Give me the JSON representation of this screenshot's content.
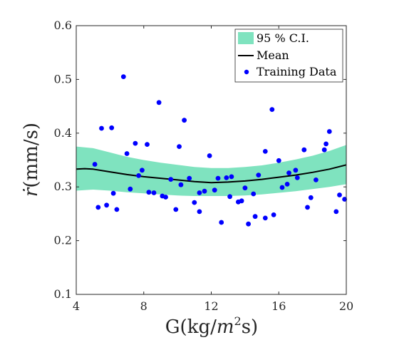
{
  "chart_data": {
    "type": "scatter",
    "xlabel_pre": "G(kg/",
    "xlabel_var": "m",
    "xlabel_sup": "2",
    "xlabel_post": "s)",
    "ylabel_var": "ṙ",
    "ylabel_unit": "(mm/s)",
    "xlim": [
      4,
      20
    ],
    "ylim": [
      0.1,
      0.6
    ],
    "xticks": [
      4,
      8,
      12,
      16,
      20
    ],
    "yticks": [
      0.1,
      0.2,
      0.3,
      0.4,
      0.5,
      0.6
    ],
    "ytick_labels": [
      "0.1",
      "0.2",
      "0.3",
      "0.4",
      "0.5",
      "0.6"
    ],
    "grid": false,
    "legend_position": "top-right",
    "legend": {
      "ci": "95 % C.I.",
      "mean": "Mean",
      "training": "Training Data"
    },
    "colors": {
      "ci_fill": "#7fe3bf",
      "mean_line": "#000000",
      "points": "#0000ff",
      "axis": "#262626"
    },
    "mean": {
      "x": [
        4,
        4.5,
        5,
        6,
        7,
        8,
        9,
        10,
        11,
        12,
        13,
        14,
        15,
        16,
        17,
        18,
        19,
        20
      ],
      "y": [
        0.333,
        0.334,
        0.333,
        0.328,
        0.323,
        0.319,
        0.316,
        0.313,
        0.31,
        0.308,
        0.309,
        0.311,
        0.314,
        0.318,
        0.322,
        0.327,
        0.333,
        0.341
      ]
    },
    "ci_upper": {
      "x": [
        4,
        5,
        6,
        7,
        8,
        9,
        10,
        11,
        12,
        13,
        14,
        15,
        16,
        17,
        18,
        19,
        20
      ],
      "y": [
        0.375,
        0.372,
        0.364,
        0.356,
        0.35,
        0.345,
        0.341,
        0.337,
        0.335,
        0.335,
        0.337,
        0.34,
        0.345,
        0.351,
        0.358,
        0.367,
        0.378
      ]
    },
    "ci_lower": {
      "x": [
        4,
        5,
        6,
        7,
        8,
        9,
        10,
        11,
        12,
        13,
        14,
        15,
        16,
        17,
        18,
        19,
        20
      ],
      "y": [
        0.293,
        0.295,
        0.293,
        0.29,
        0.288,
        0.286,
        0.284,
        0.283,
        0.283,
        0.283,
        0.284,
        0.286,
        0.289,
        0.292,
        0.296,
        0.3,
        0.305
      ]
    },
    "points": [
      {
        "x": 5.1,
        "y": 0.342
      },
      {
        "x": 5.3,
        "y": 0.262
      },
      {
        "x": 5.5,
        "y": 0.409
      },
      {
        "x": 5.8,
        "y": 0.266
      },
      {
        "x": 6.1,
        "y": 0.41
      },
      {
        "x": 6.2,
        "y": 0.288
      },
      {
        "x": 6.4,
        "y": 0.258
      },
      {
        "x": 6.8,
        "y": 0.505
      },
      {
        "x": 7.0,
        "y": 0.362
      },
      {
        "x": 7.2,
        "y": 0.296
      },
      {
        "x": 7.5,
        "y": 0.381
      },
      {
        "x": 7.7,
        "y": 0.321
      },
      {
        "x": 7.9,
        "y": 0.331
      },
      {
        "x": 8.2,
        "y": 0.379
      },
      {
        "x": 8.3,
        "y": 0.29
      },
      {
        "x": 8.6,
        "y": 0.289
      },
      {
        "x": 8.9,
        "y": 0.457
      },
      {
        "x": 9.1,
        "y": 0.283
      },
      {
        "x": 9.3,
        "y": 0.281
      },
      {
        "x": 9.6,
        "y": 0.314
      },
      {
        "x": 9.9,
        "y": 0.258
      },
      {
        "x": 10.1,
        "y": 0.375
      },
      {
        "x": 10.2,
        "y": 0.304
      },
      {
        "x": 10.4,
        "y": 0.424
      },
      {
        "x": 10.7,
        "y": 0.316
      },
      {
        "x": 11.0,
        "y": 0.271
      },
      {
        "x": 11.3,
        "y": 0.254
      },
      {
        "x": 11.3,
        "y": 0.289
      },
      {
        "x": 11.6,
        "y": 0.292
      },
      {
        "x": 11.9,
        "y": 0.358
      },
      {
        "x": 12.2,
        "y": 0.294
      },
      {
        "x": 12.4,
        "y": 0.316
      },
      {
        "x": 12.6,
        "y": 0.234
      },
      {
        "x": 12.9,
        "y": 0.317
      },
      {
        "x": 13.1,
        "y": 0.282
      },
      {
        "x": 13.2,
        "y": 0.319
      },
      {
        "x": 13.6,
        "y": 0.272
      },
      {
        "x": 13.8,
        "y": 0.274
      },
      {
        "x": 14.0,
        "y": 0.298
      },
      {
        "x": 14.2,
        "y": 0.231
      },
      {
        "x": 14.5,
        "y": 0.287
      },
      {
        "x": 14.6,
        "y": 0.245
      },
      {
        "x": 14.8,
        "y": 0.322
      },
      {
        "x": 15.2,
        "y": 0.366
      },
      {
        "x": 15.2,
        "y": 0.242
      },
      {
        "x": 15.6,
        "y": 0.444
      },
      {
        "x": 15.7,
        "y": 0.248
      },
      {
        "x": 16.0,
        "y": 0.349
      },
      {
        "x": 16.2,
        "y": 0.299
      },
      {
        "x": 16.5,
        "y": 0.305
      },
      {
        "x": 16.6,
        "y": 0.326
      },
      {
        "x": 17.0,
        "y": 0.331
      },
      {
        "x": 17.1,
        "y": 0.317
      },
      {
        "x": 17.5,
        "y": 0.369
      },
      {
        "x": 17.7,
        "y": 0.262
      },
      {
        "x": 17.9,
        "y": 0.28
      },
      {
        "x": 18.2,
        "y": 0.313
      },
      {
        "x": 18.7,
        "y": 0.369
      },
      {
        "x": 18.8,
        "y": 0.38
      },
      {
        "x": 19.0,
        "y": 0.403
      },
      {
        "x": 19.4,
        "y": 0.254
      },
      {
        "x": 19.6,
        "y": 0.285
      },
      {
        "x": 19.9,
        "y": 0.277
      }
    ]
  }
}
